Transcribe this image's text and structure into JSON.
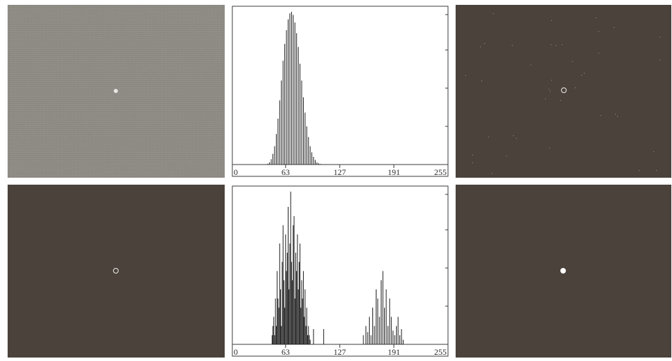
{
  "chart_data": [
    {
      "type": "bar",
      "title": "",
      "xlabel": "",
      "ylabel": "",
      "xlim": [
        0,
        255
      ],
      "xticks": [
        "0",
        "63",
        "127",
        "191",
        "255"
      ],
      "grid": false,
      "legend": "none",
      "x": [
        40,
        42,
        44,
        46,
        48,
        50,
        52,
        54,
        56,
        58,
        60,
        62,
        64,
        66,
        68,
        70,
        72,
        74,
        76,
        78,
        80,
        82,
        84,
        86,
        88,
        90,
        92,
        94,
        96,
        98,
        100,
        102,
        104,
        106,
        108,
        110,
        112,
        114,
        116,
        118,
        120
      ],
      "values": [
        0.002,
        0.006,
        0.015,
        0.035,
        0.07,
        0.12,
        0.2,
        0.3,
        0.42,
        0.55,
        0.68,
        0.79,
        0.88,
        0.95,
        0.99,
        1.0,
        0.98,
        0.93,
        0.86,
        0.77,
        0.66,
        0.55,
        0.44,
        0.34,
        0.25,
        0.18,
        0.12,
        0.08,
        0.05,
        0.03,
        0.015,
        0.008,
        0.004,
        0.002,
        0.001,
        0.001,
        0.0,
        0.0,
        0.0,
        0.0,
        0.0
      ]
    },
    {
      "type": "bar",
      "title": "",
      "xlabel": "",
      "ylabel": "",
      "xlim": [
        0,
        255
      ],
      "xticks": [
        "0",
        "63",
        "127",
        "191",
        "255"
      ],
      "grid": false,
      "legend": "none",
      "x": [
        47,
        48,
        49,
        50,
        51,
        52,
        53,
        54,
        55,
        56,
        57,
        58,
        59,
        60,
        61,
        62,
        63,
        64,
        65,
        66,
        67,
        68,
        69,
        70,
        71,
        72,
        73,
        74,
        75,
        76,
        77,
        78,
        79,
        80,
        81,
        82,
        83,
        84,
        85,
        86,
        87,
        88,
        89,
        90,
        91,
        92,
        96,
        108,
        155,
        158,
        160,
        162,
        164,
        166,
        168,
        170,
        172,
        174,
        176,
        178,
        180,
        182,
        184,
        186,
        188,
        190,
        192,
        194,
        196,
        198,
        200,
        202
      ],
      "values": [
        0.06,
        0.12,
        0.18,
        0.06,
        0.3,
        0.12,
        0.48,
        0.3,
        0.24,
        0.66,
        0.36,
        0.12,
        0.54,
        0.78,
        0.42,
        0.24,
        0.72,
        0.48,
        0.6,
        0.9,
        0.36,
        0.66,
        1.0,
        0.54,
        0.42,
        0.78,
        0.84,
        0.3,
        0.6,
        0.48,
        0.72,
        0.36,
        0.54,
        0.66,
        0.24,
        0.42,
        0.3,
        0.48,
        0.18,
        0.36,
        0.12,
        0.24,
        0.06,
        0.12,
        0.06,
        0.03,
        0.1,
        0.1,
        0.06,
        0.12,
        0.08,
        0.18,
        0.06,
        0.24,
        0.12,
        0.36,
        0.3,
        0.18,
        0.42,
        0.48,
        0.24,
        0.36,
        0.12,
        0.3,
        0.18,
        0.09,
        0.06,
        0.12,
        0.18,
        0.06,
        0.1,
        0.03
      ]
    }
  ]
}
